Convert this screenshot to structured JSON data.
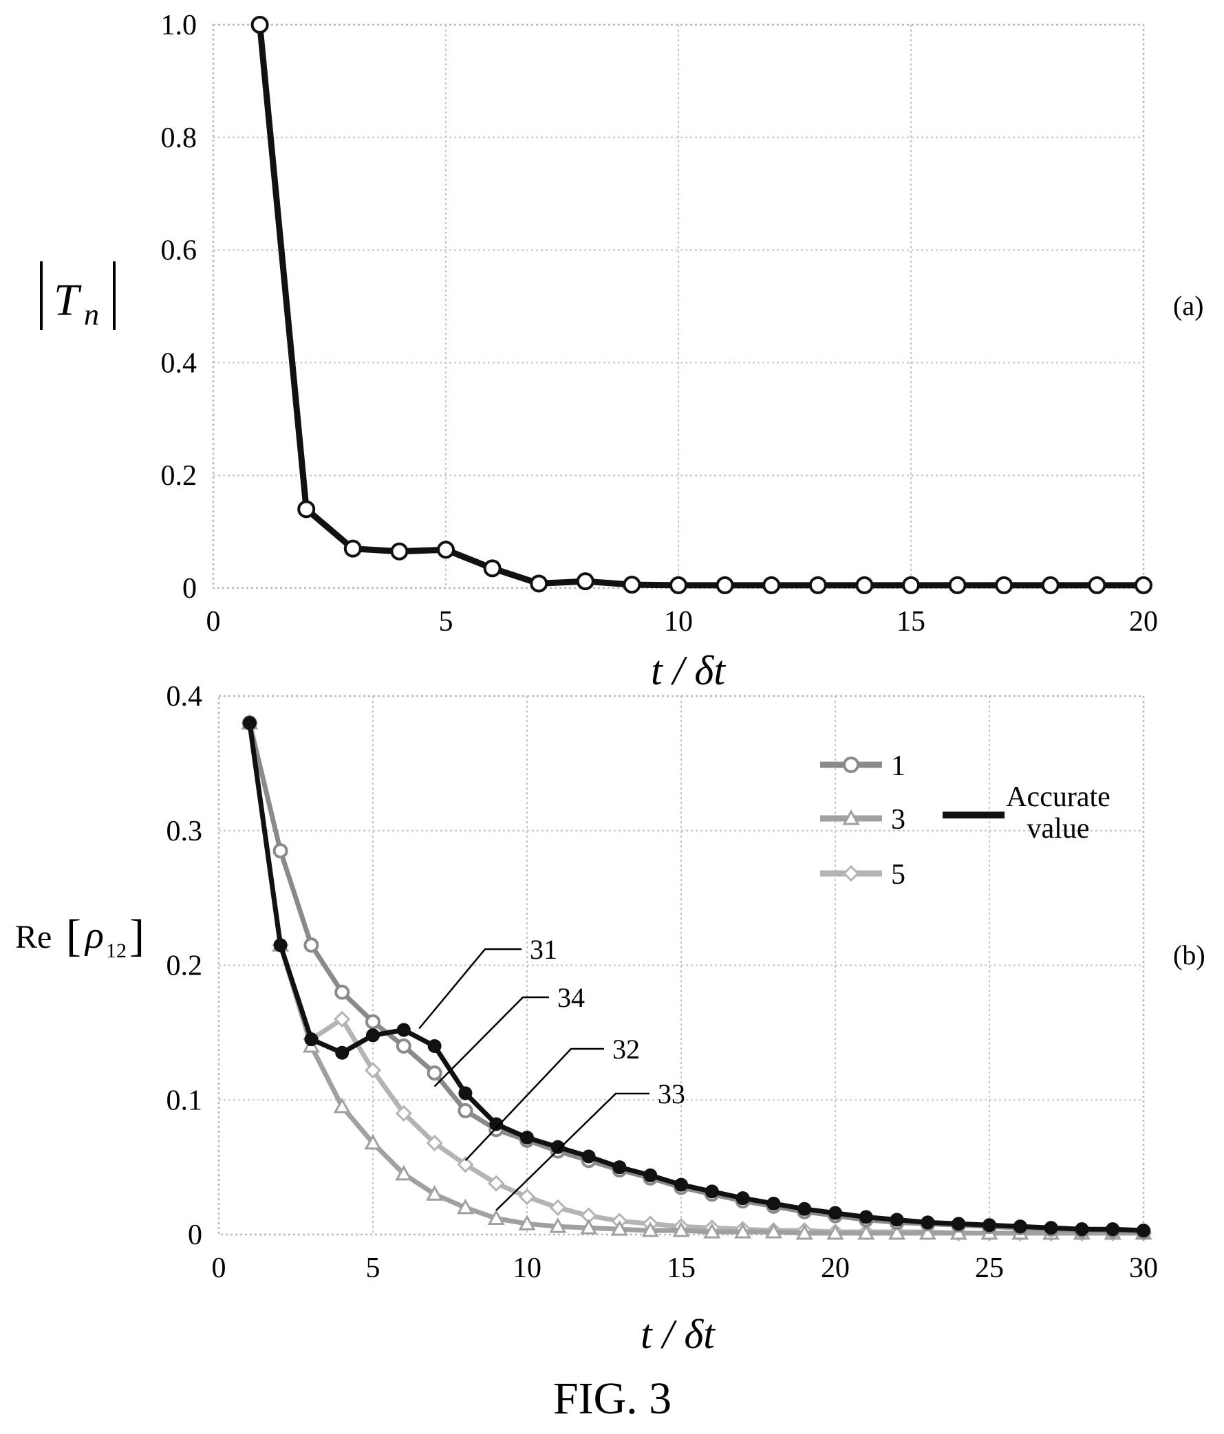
{
  "figure_label": "FIG. 3",
  "chart_data": [
    {
      "type": "line",
      "panel_label": "(a)",
      "xlabel": "t / δt",
      "ylabel": "|Tn|",
      "ylabel_parts": {
        "symbol": "T",
        "subscript": "n"
      },
      "xlim": [
        0,
        20
      ],
      "ylim": [
        0,
        1.0
      ],
      "x_ticks": [
        "0",
        "5",
        "10",
        "15",
        "20"
      ],
      "y_ticks": [
        "0",
        "0.2",
        "0.4",
        "0.6",
        "0.8",
        "1.0"
      ],
      "grid": true,
      "series": [
        {
          "marker": "open-circle",
          "x": [
            1,
            2,
            3,
            4,
            5,
            6,
            7,
            8,
            9,
            10,
            11,
            12,
            13,
            14,
            15,
            16,
            17,
            18,
            19,
            20
          ],
          "y": [
            1.0,
            0.14,
            0.07,
            0.065,
            0.068,
            0.035,
            0.008,
            0.012,
            0.006,
            0.005,
            0.005,
            0.005,
            0.005,
            0.005,
            0.005,
            0.005,
            0.005,
            0.005,
            0.005,
            0.005
          ]
        }
      ]
    },
    {
      "type": "line",
      "panel_label": "(b)",
      "xlabel": "t / δt",
      "ylabel": "Re[ρ12]",
      "ylabel_parts": {
        "prefix": "Re",
        "symbol": "ρ",
        "subscript": "12"
      },
      "xlim": [
        0,
        30
      ],
      "ylim": [
        0,
        0.4
      ],
      "x_ticks": [
        "0",
        "5",
        "10",
        "15",
        "20",
        "25",
        "30"
      ],
      "y_ticks": [
        "0",
        "0.1",
        "0.2",
        "0.3",
        "0.4"
      ],
      "grid": true,
      "legend": {
        "placement": "top-right",
        "entries": [
          "1",
          "3",
          "5"
        ],
        "accurate_label_lines": [
          "Accurate",
          "value"
        ]
      },
      "series": [
        {
          "name": "Accurate value",
          "marker": "filled-circle",
          "color": "#111111",
          "x": [
            1,
            2,
            3,
            4,
            5,
            6,
            7,
            8,
            9,
            10,
            11,
            12,
            13,
            14,
            15,
            16,
            17,
            18,
            19,
            20,
            21,
            22,
            23,
            24,
            25,
            26,
            27,
            28,
            29,
            30
          ],
          "y": [
            0.38,
            0.215,
            0.145,
            0.135,
            0.148,
            0.152,
            0.14,
            0.105,
            0.082,
            0.072,
            0.065,
            0.058,
            0.05,
            0.044,
            0.037,
            0.032,
            0.027,
            0.023,
            0.019,
            0.016,
            0.013,
            0.011,
            0.009,
            0.008,
            0.007,
            0.006,
            0.005,
            0.004,
            0.004,
            0.003
          ]
        },
        {
          "name": "1",
          "marker": "open-circle",
          "color": "#8a8a8a",
          "x": [
            1,
            2,
            3,
            4,
            5,
            6,
            7,
            8,
            9,
            10,
            11,
            12,
            13,
            14,
            15,
            16,
            17,
            18,
            19,
            20,
            21,
            22,
            23,
            24,
            25,
            26,
            27,
            28,
            29,
            30
          ],
          "y": [
            0.38,
            0.285,
            0.215,
            0.18,
            0.158,
            0.14,
            0.12,
            0.092,
            0.078,
            0.07,
            0.062,
            0.055,
            0.048,
            0.042,
            0.035,
            0.03,
            0.025,
            0.021,
            0.017,
            0.014,
            0.011,
            0.009,
            0.008,
            0.007,
            0.006,
            0.005,
            0.004,
            0.003,
            0.003,
            0.002
          ]
        },
        {
          "name": "3",
          "marker": "open-triangle",
          "color": "#a0a0a0",
          "x": [
            1,
            2,
            3,
            4,
            5,
            6,
            7,
            8,
            9,
            10,
            11,
            12,
            13,
            14,
            15,
            16,
            17,
            18,
            19,
            20,
            21,
            22,
            23,
            24,
            25,
            26,
            27,
            28,
            29,
            30
          ],
          "y": [
            0.38,
            0.215,
            0.14,
            0.095,
            0.068,
            0.045,
            0.03,
            0.02,
            0.012,
            0.008,
            0.006,
            0.005,
            0.004,
            0.003,
            0.003,
            0.002,
            0.002,
            0.002,
            0.001,
            0.001,
            0.001,
            0.001,
            0.001,
            0.001,
            0.001,
            0.001,
            0.001,
            0.001,
            0.001,
            0.001
          ]
        },
        {
          "name": "5",
          "marker": "open-diamond",
          "color": "#b4b4b4",
          "x": [
            1,
            2,
            3,
            4,
            5,
            6,
            7,
            8,
            9,
            10,
            11,
            12,
            13,
            14,
            15,
            16,
            17,
            18,
            19,
            20,
            21,
            22,
            23,
            24,
            25,
            26,
            27,
            28,
            29,
            30
          ],
          "y": [
            0.38,
            0.215,
            0.145,
            0.16,
            0.122,
            0.09,
            0.068,
            0.052,
            0.038,
            0.028,
            0.02,
            0.014,
            0.01,
            0.008,
            0.006,
            0.005,
            0.004,
            0.003,
            0.003,
            0.002,
            0.002,
            0.002,
            0.002,
            0.001,
            0.001,
            0.001,
            0.001,
            0.001,
            0.001,
            0.001
          ]
        }
      ],
      "annotations": [
        {
          "text": "31",
          "x": 6.5,
          "y": 0.153
        },
        {
          "text": "34",
          "x": 7,
          "y": 0.11
        },
        {
          "text": "32",
          "x": 8,
          "y": 0.055
        },
        {
          "text": "33",
          "x": 9,
          "y": 0.018
        }
      ]
    }
  ]
}
